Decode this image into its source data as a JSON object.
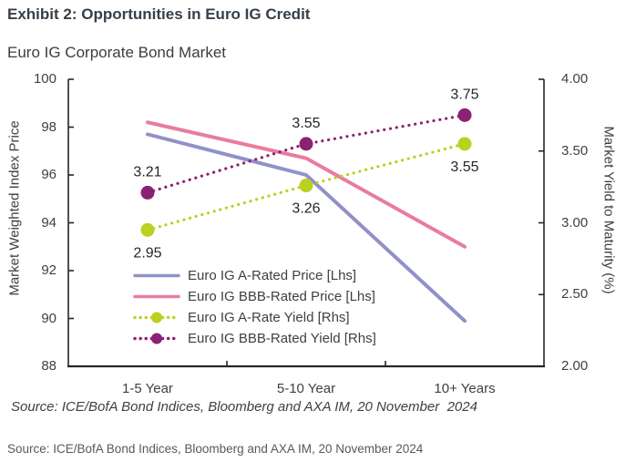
{
  "exhibit": {
    "title": "Exhibit 2: Opportunities in Euro IG Credit"
  },
  "chart": {
    "title": "Euro IG Corporate Bond Market",
    "inline_source": "Source: ICE/BofA Bond Indices, Bloomberg and AXA IM, 20 November  2024"
  },
  "footer": {
    "source": "Source: ICE/BofA Bond Indices, Bloomberg and AXA IM, 20 November 2024"
  },
  "colors": {
    "title": "#364049",
    "text": "#404040",
    "axis": "#262626",
    "footer_text": "#595959",
    "a_rated_price": "#9191c8",
    "bbb_rated_price": "#e87d9c",
    "a_rate_yield": "#bcd01e",
    "bbb_rated_yield": "#8b2172"
  },
  "chart_data": {
    "type": "line",
    "title": "Euro IG Corporate Bond Market",
    "categories": [
      "1-5 Year",
      "5-10 Year",
      "10+ Years"
    ],
    "grid": false,
    "legend_position": "inside bottom-left",
    "axes": {
      "left": {
        "label": "Market Weighted Index Price",
        "min": 88,
        "max": 100,
        "ticks": [
          "100",
          "98",
          "96",
          "94",
          "92",
          "90",
          "88"
        ]
      },
      "right": {
        "label": "Market Yield to Maturity (%)",
        "min": 2,
        "max": 4,
        "ticks": [
          "4.00",
          "3.50",
          "3.00",
          "2.50",
          "2.00"
        ]
      }
    },
    "series": [
      {
        "name": "Euro IG A-Rated Price [Lhs]",
        "axis": "left",
        "line": "solid",
        "marker": false,
        "color": "#9191c8",
        "values": [
          97.7,
          96.0,
          89.9
        ]
      },
      {
        "name": "Euro IG BBB-Rated Price [Lhs]",
        "axis": "left",
        "line": "solid",
        "marker": false,
        "color": "#e87d9c",
        "values": [
          98.2,
          96.7,
          93.0
        ]
      },
      {
        "name": "Euro IG A-Rate Yield [Rhs]",
        "axis": "right",
        "line": "dotted",
        "marker": true,
        "color": "#bcd01e",
        "values": [
          2.95,
          3.26,
          3.55
        ],
        "point_labels": [
          "2.95",
          "3.26",
          "3.55"
        ],
        "point_label_side": "below"
      },
      {
        "name": "Euro IG BBB-Rated Yield [Rhs]",
        "axis": "right",
        "line": "dotted",
        "marker": true,
        "color": "#8b2172",
        "values": [
          3.21,
          3.55,
          3.75
        ],
        "point_labels": [
          "3.21",
          "3.55",
          "3.75"
        ],
        "point_label_side": "above"
      }
    ]
  }
}
